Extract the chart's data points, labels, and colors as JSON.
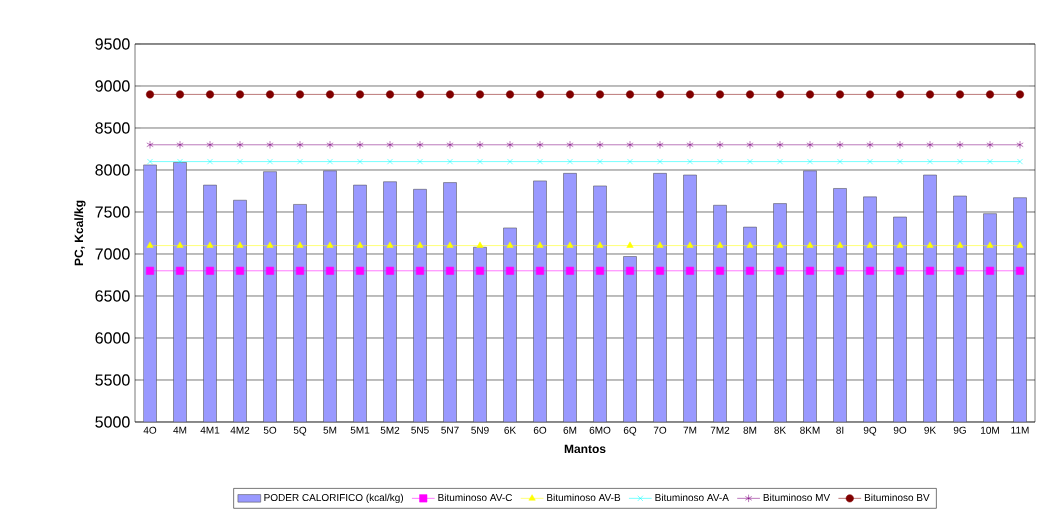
{
  "chart_data": {
    "type": "bar",
    "xlabel": "Mantos",
    "ylabel": "PC, Kcal/kg",
    "categories": [
      "4O",
      "4M",
      "4M1",
      "4M2",
      "5O",
      "5Q",
      "5M",
      "5M1",
      "5M2",
      "5N5",
      "5N7",
      "5N9",
      "6K",
      "6O",
      "6M",
      "6MO",
      "6Q",
      "7O",
      "7M",
      "7M2",
      "8M",
      "8K",
      "8KM",
      "8I",
      "9Q",
      "9O",
      "9K",
      "9G",
      "10M",
      "11M"
    ],
    "series": [
      {
        "name": "PODER CALORIFICO (kcal/kg)",
        "color": "#9999ff",
        "values": [
          8060,
          8090,
          7820,
          7640,
          7980,
          7590,
          7990,
          7820,
          7860,
          7770,
          7850,
          7080,
          7310,
          7870,
          7960,
          7810,
          6970,
          7960,
          7940,
          7580,
          7320,
          7600,
          7990,
          7780,
          7680,
          7440,
          7940,
          7690,
          7480,
          7670
        ]
      },
      {
        "name": "Bituminoso AV-C",
        "type": "line",
        "color": "#ff00ff",
        "marker": "square",
        "values": [
          6800,
          6800,
          6800,
          6800,
          6800,
          6800,
          6800,
          6800,
          6800,
          6800,
          6800,
          6800,
          6800,
          6800,
          6800,
          6800,
          6800,
          6800,
          6800,
          6800,
          6800,
          6800,
          6800,
          6800,
          6800,
          6800,
          6800,
          6800,
          6800,
          6800
        ]
      },
      {
        "name": "Bituminoso AV-B",
        "type": "line",
        "color": "#ffff00",
        "marker": "triangle",
        "values": [
          7100,
          7100,
          7100,
          7100,
          7100,
          7100,
          7100,
          7100,
          7100,
          7100,
          7100,
          7100,
          7100,
          7100,
          7100,
          7100,
          7100,
          7100,
          7100,
          7100,
          7100,
          7100,
          7100,
          7100,
          7100,
          7100,
          7100,
          7100,
          7100,
          7100
        ]
      },
      {
        "name": "Bituminoso AV-A",
        "type": "line",
        "color": "#00ffff",
        "marker": "cross",
        "values": [
          8100,
          8100,
          8100,
          8100,
          8100,
          8100,
          8100,
          8100,
          8100,
          8100,
          8100,
          8100,
          8100,
          8100,
          8100,
          8100,
          8100,
          8100,
          8100,
          8100,
          8100,
          8100,
          8100,
          8100,
          8100,
          8100,
          8100,
          8100,
          8100,
          8100
        ]
      },
      {
        "name": "Bituminoso MV",
        "type": "line",
        "color": "#800080",
        "marker": "cross",
        "values": [
          8300,
          8300,
          8300,
          8300,
          8300,
          8300,
          8300,
          8300,
          8300,
          8300,
          8300,
          8300,
          8300,
          8300,
          8300,
          8300,
          8300,
          8300,
          8300,
          8300,
          8300,
          8300,
          8300,
          8300,
          8300,
          8300,
          8300,
          8300,
          8300,
          8300
        ]
      },
      {
        "name": "Bituminoso BV",
        "type": "line",
        "color": "#800000",
        "marker": "circle",
        "values": [
          8900,
          8900,
          8900,
          8900,
          8900,
          8900,
          8900,
          8900,
          8900,
          8900,
          8900,
          8900,
          8900,
          8900,
          8900,
          8900,
          8900,
          8900,
          8900,
          8900,
          8900,
          8900,
          8900,
          8900,
          8900,
          8900,
          8900,
          8900,
          8900,
          8900
        ]
      }
    ],
    "ylim": [
      5000,
      9500
    ],
    "yticks": [
      5000,
      5500,
      6000,
      6500,
      7000,
      7500,
      8000,
      8500,
      9000,
      9500
    ],
    "grid": "y",
    "legend": "bottom"
  }
}
